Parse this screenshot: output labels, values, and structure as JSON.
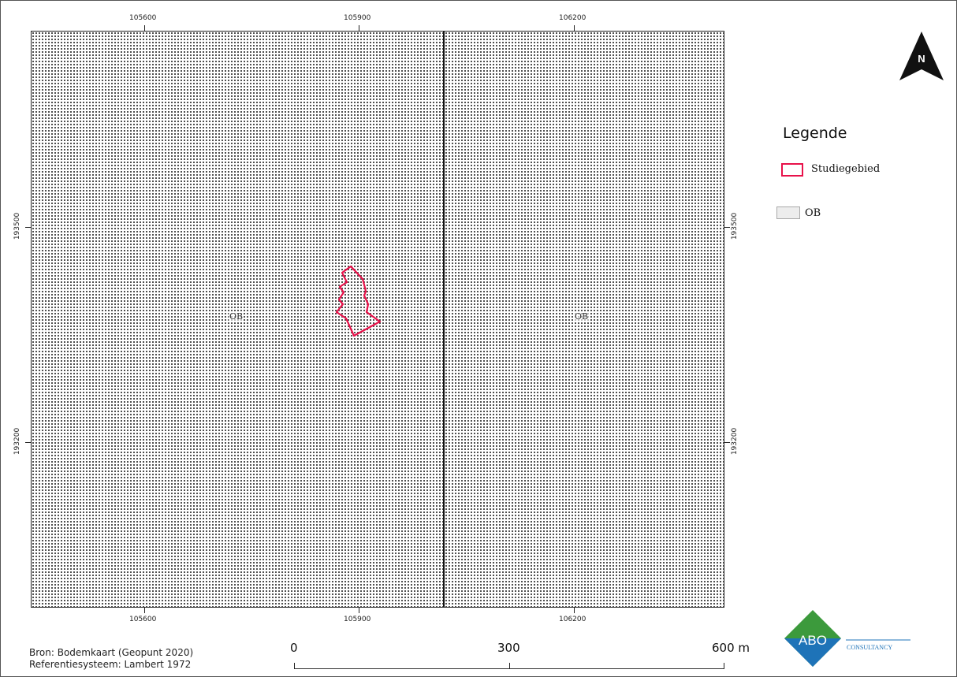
{
  "map": {
    "x_ticks": [
      "105600",
      "105900",
      "106200"
    ],
    "y_ticks": [
      "193500",
      "193200"
    ],
    "soil_label": "OB",
    "study_area_color": "#e8114a"
  },
  "north_arrow": {
    "label": "N"
  },
  "legend": {
    "title": "Legende",
    "items": [
      {
        "label": "Studiegebied",
        "icon": "red-outline-swatch"
      },
      {
        "label": "OB",
        "icon": "gray-fill-swatch"
      }
    ]
  },
  "footer": {
    "source": "Bron: Bodemkaart (Geopunt 2020)",
    "reference_system": "Referentiesysteem: Lambert 1972"
  },
  "scale_bar": {
    "labels": [
      "0",
      "300",
      "600 m"
    ]
  },
  "logo": {
    "brand": "ABO",
    "subtitle": "CONSULTANCY",
    "colors": {
      "green": "#3c9a3c",
      "blue": "#1e73b8"
    }
  }
}
